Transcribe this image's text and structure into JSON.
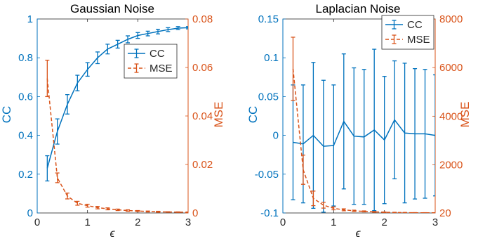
{
  "colors": {
    "cc": "#0072BD",
    "mse": "#D95319",
    "axis": "#262626",
    "bg": "#ffffff"
  },
  "chart_data": [
    {
      "type": "line",
      "title": "Gaussian Noise",
      "xlabel": "ϵ",
      "ylabel_left": "CC",
      "ylabel_right": "MSE",
      "xlim": [
        0,
        3
      ],
      "ylim_left": [
        0,
        1
      ],
      "ylim_right": [
        0,
        0.08
      ],
      "xticks": [
        "0",
        "1",
        "2",
        "3"
      ],
      "yticks_left": [
        "0",
        "0.2",
        "0.4",
        "0.6",
        "0.8",
        "1"
      ],
      "yticks_right": [
        "0",
        "0.02",
        "0.04",
        "0.06",
        "0.08"
      ],
      "legend": {
        "placement": "upper-right",
        "entries": [
          "CC",
          "MSE"
        ]
      },
      "grid": false,
      "x": [
        0.2,
        0.4,
        0.6,
        0.8,
        1.0,
        1.2,
        1.4,
        1.6,
        1.8,
        2.0,
        2.2,
        2.4,
        2.6,
        2.8,
        3.0
      ],
      "series": [
        {
          "name": "CC",
          "axis": "left",
          "style": "solid",
          "values": [
            0.23,
            0.42,
            0.56,
            0.67,
            0.74,
            0.8,
            0.845,
            0.87,
            0.895,
            0.915,
            0.925,
            0.935,
            0.945,
            0.953,
            0.955
          ],
          "err": [
            0.065,
            0.065,
            0.05,
            0.04,
            0.035,
            0.03,
            0.025,
            0.02,
            0.018,
            0.015,
            0.012,
            0.012,
            0.01,
            0.008,
            0.006
          ]
        },
        {
          "name": "MSE",
          "axis": "right",
          "style": "dashed",
          "values": [
            0.0555,
            0.0145,
            0.007,
            0.004,
            0.003,
            0.0022,
            0.0017,
            0.0013,
            0.001,
            0.0008,
            0.0006,
            0.0005,
            0.0004,
            0.00035,
            0.0003
          ],
          "err": [
            0.0075,
            0.002,
            0.0012,
            0.0008,
            0.0006,
            0.0005,
            0.0004,
            0.0003,
            0.0003,
            0.0002,
            0.0002,
            0.0002,
            0.0001,
            0.0001,
            0.0001
          ]
        }
      ]
    },
    {
      "type": "line",
      "title": "Laplacian Noise",
      "xlabel": "ϵ",
      "ylabel_left": "CC",
      "ylabel_right": "MSE",
      "xlim": [
        0,
        3
      ],
      "ylim_left": [
        -0.1,
        0.15
      ],
      "ylim_right": [
        20,
        8000
      ],
      "xticks": [
        "0",
        "1",
        "2",
        "3"
      ],
      "yticks_left": [
        "-0.1",
        "-0.05",
        "0",
        "0.05",
        "0.1",
        "0.15"
      ],
      "yticks_right": [
        "20",
        "2000",
        "4000",
        "6000",
        "8000"
      ],
      "right_tick_values": [
        20,
        2000,
        4000,
        6000,
        8000
      ],
      "legend": {
        "placement": "upper-right",
        "entries": [
          "CC",
          "MSE"
        ]
      },
      "grid": false,
      "x": [
        0.2,
        0.4,
        0.6,
        0.8,
        1.0,
        1.2,
        1.4,
        1.6,
        1.8,
        2.0,
        2.2,
        2.4,
        2.6,
        2.8,
        3.0
      ],
      "series": [
        {
          "name": "CC",
          "axis": "left",
          "style": "solid",
          "values": [
            -0.009,
            -0.011,
            0.0,
            -0.014,
            -0.013,
            0.018,
            -0.001,
            -0.002,
            0.007,
            -0.006,
            0.02,
            0.003,
            0.002,
            0.002,
            0.0
          ],
          "err": [
            0.074,
            0.076,
            0.094,
            0.085,
            0.078,
            0.087,
            0.088,
            0.087,
            0.104,
            0.082,
            0.076,
            0.09,
            0.084,
            0.083,
            0.078
          ]
        },
        {
          "name": "MSE",
          "axis": "right",
          "style": "dashed",
          "values": [
            5950,
            1800,
            620,
            340,
            210,
            150,
            110,
            85,
            65,
            50,
            40,
            35,
            30,
            28,
            25
          ],
          "err": [
            1300,
            600,
            300,
            120,
            60,
            40,
            25,
            20,
            15,
            10,
            8,
            6,
            5,
            4,
            3
          ]
        }
      ]
    }
  ]
}
